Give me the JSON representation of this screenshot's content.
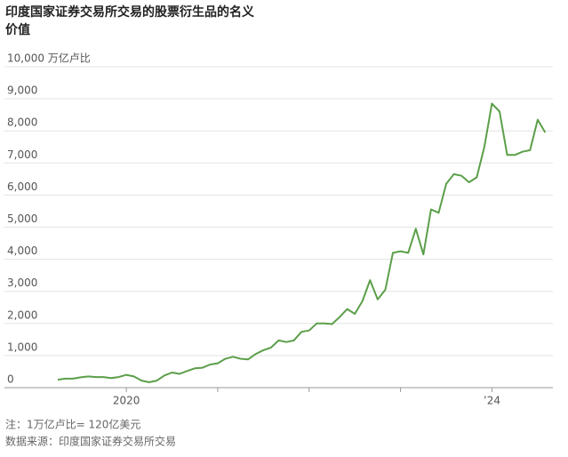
{
  "chart_data": {
    "type": "line",
    "title": "印度国家证券交易所交易的股票衍生品的名义",
    "subtitle": "价值",
    "notes": [
      "注：1万亿卢比= 120亿美元",
      "数据来源：印度国家证券交易所交易"
    ],
    "x": [
      "2019-04",
      "2019-05",
      "2019-06",
      "2019-07",
      "2019-08",
      "2019-09",
      "2019-10",
      "2019-11",
      "2019-12",
      "2020-01",
      "2020-02",
      "2020-03",
      "2020-04",
      "2020-05",
      "2020-06",
      "2020-07",
      "2020-08",
      "2020-09",
      "2020-10",
      "2020-11",
      "2020-12",
      "2021-01",
      "2021-02",
      "2021-03",
      "2021-04",
      "2021-05",
      "2021-06",
      "2021-07",
      "2021-08",
      "2021-09",
      "2021-10",
      "2021-11",
      "2021-12",
      "2022-01",
      "2022-02",
      "2022-03",
      "2022-04",
      "2022-05",
      "2022-06",
      "2022-07",
      "2022-08",
      "2022-09",
      "2022-10",
      "2022-11",
      "2022-12",
      "2023-01",
      "2023-02",
      "2023-03",
      "2023-04",
      "2023-05",
      "2023-06",
      "2023-07",
      "2023-08",
      "2023-09",
      "2023-10",
      "2023-11",
      "2023-12",
      "2024-01",
      "2024-02",
      "2024-03",
      "2024-04",
      "2024-05",
      "2024-06",
      "2024-07",
      "2024-08"
    ],
    "series": [
      {
        "name": "名义价值",
        "color": "#5b9f49",
        "values": [
          250,
          280,
          280,
          320,
          350,
          330,
          330,
          300,
          330,
          400,
          350,
          220,
          170,
          220,
          380,
          470,
          430,
          520,
          600,
          620,
          720,
          760,
          900,
          960,
          900,
          880,
          1050,
          1170,
          1250,
          1470,
          1420,
          1470,
          1740,
          1780,
          2000,
          2000,
          1980,
          2200,
          2450,
          2300,
          2700,
          3350,
          2750,
          3050,
          4200,
          4250,
          4200,
          4950,
          4150,
          5550,
          5450,
          6350,
          6650,
          6600,
          6400,
          6550,
          7500,
          8850,
          8600,
          7250,
          7250,
          7350,
          7400,
          8350,
          7950
        ]
      }
    ],
    "xlim": [
      "2018-09",
      "2024-09"
    ],
    "xticks": [
      {
        "value": "2020-01",
        "label": "2020"
      },
      {
        "value": "2021-01",
        "label": null
      },
      {
        "value": "2022-01",
        "label": null
      },
      {
        "value": "2023-01",
        "label": null
      },
      {
        "value": "2024-01",
        "label": "’24"
      }
    ],
    "ylim": [
      0,
      10000
    ],
    "yticks": [
      0,
      {
        "value": 1000,
        "label": "1,000"
      },
      {
        "value": 2000,
        "label": "2,000"
      },
      {
        "value": 3000,
        "label": "3,000"
      },
      {
        "value": 4000,
        "label": "4,000"
      },
      {
        "value": 5000,
        "label": "5,000"
      },
      {
        "value": 6000,
        "label": "6,000"
      },
      {
        "value": 7000,
        "label": "7,000"
      },
      {
        "value": 8000,
        "label": "8,000"
      },
      {
        "value": 9000,
        "label": "9,000"
      },
      {
        "value": 10000,
        "label": "10,000 万亿卢比"
      }
    ],
    "grid": true
  }
}
